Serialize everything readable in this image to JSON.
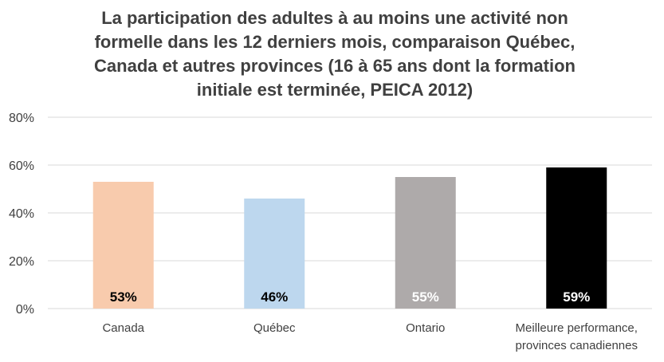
{
  "chart_data": {
    "type": "bar",
    "title": "La participation des adultes à au moins une activité non formelle dans les 12 derniers mois, comparaison Québec, Canada et autres provinces (16 à 65 ans dont la formation initiale est terminée, PEICA 2012)",
    "title_lines": [
      "La participation des adultes à au moins une activité non",
      "formelle dans les 12 derniers mois, comparaison Québec,",
      "Canada et autres provinces (16 à 65 ans dont la formation",
      "initiale est terminée, PEICA 2012)"
    ],
    "categories": [
      [
        "Canada"
      ],
      [
        "Québec"
      ],
      [
        "Ontario"
      ],
      [
        "Meilleure performance,",
        "provinces canadiennes"
      ]
    ],
    "values": [
      53,
      46,
      55,
      59
    ],
    "value_labels": [
      "53%",
      "46%",
      "55%",
      "59%"
    ],
    "bar_colors": [
      "#f8cbad",
      "#bdd7ee",
      "#aeaaaa",
      "#000000"
    ],
    "label_colors": [
      "#000000",
      "#000000",
      "#ffffff",
      "#ffffff"
    ],
    "ylim": [
      0,
      80
    ],
    "yticks": [
      0,
      20,
      40,
      60,
      80
    ],
    "ytick_labels": [
      "0%",
      "20%",
      "40%",
      "60%",
      "80%"
    ],
    "grid": true,
    "grid_color": "#d9d9d9",
    "legend": "none"
  }
}
